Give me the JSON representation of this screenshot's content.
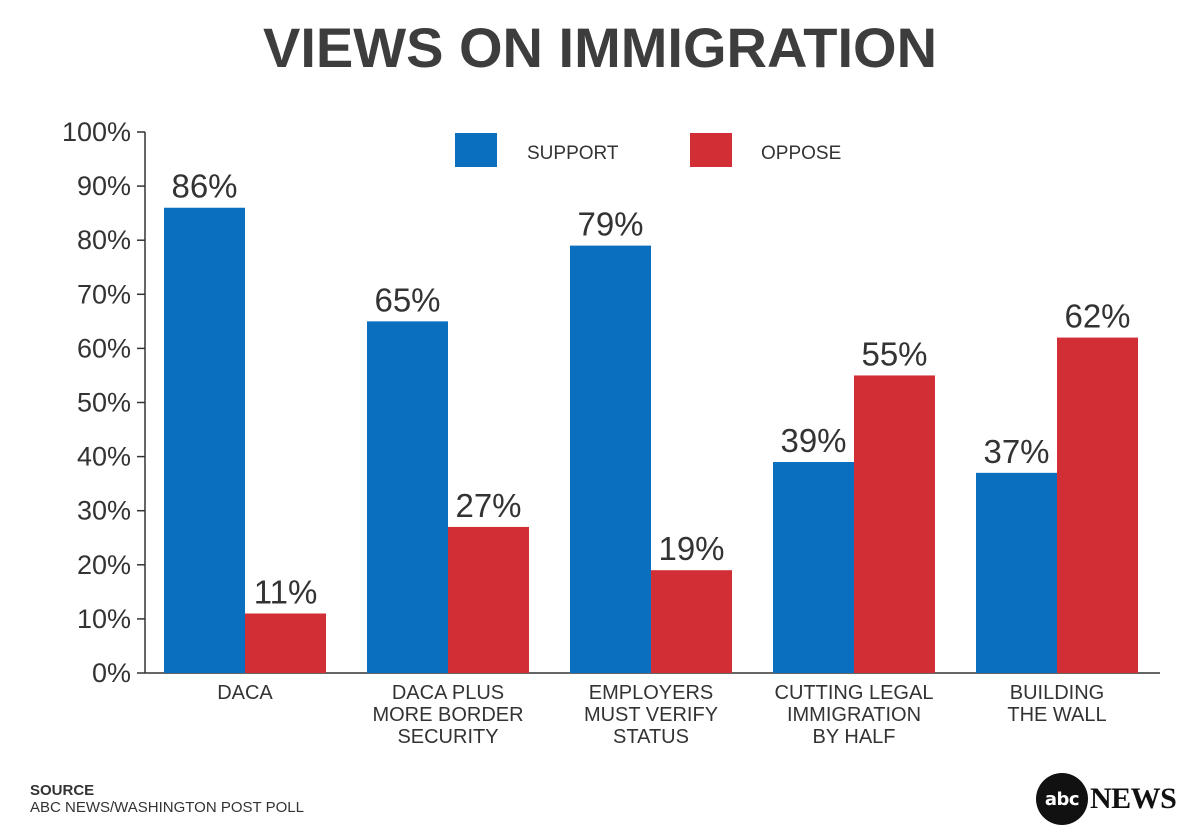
{
  "chart_data": {
    "type": "bar",
    "title": "VIEWS ON IMMIGRATION",
    "xlabel": "",
    "ylabel": "",
    "ylim": [
      0,
      100
    ],
    "y_ticks": [
      "0%",
      "10%",
      "20%",
      "30%",
      "40%",
      "50%",
      "60%",
      "70%",
      "80%",
      "90%",
      "100%"
    ],
    "categories": [
      [
        "DACA"
      ],
      [
        "DACA PLUS",
        "MORE BORDER",
        "SECURITY"
      ],
      [
        "EMPLOYERS",
        "MUST VERIFY",
        "STATUS"
      ],
      [
        "CUTTING LEGAL",
        "IMMIGRATION",
        "BY HALF"
      ],
      [
        "BUILDING",
        "THE WALL"
      ]
    ],
    "series": [
      {
        "name": "SUPPORT",
        "color": "#0a6fbf",
        "values": [
          86,
          65,
          79,
          39,
          37
        ],
        "labels": [
          "86%",
          "65%",
          "79%",
          "39%",
          "37%"
        ]
      },
      {
        "name": "OPPOSE",
        "color": "#d12e35",
        "values": [
          11,
          27,
          19,
          55,
          62
        ],
        "labels": [
          "11%",
          "27%",
          "19%",
          "55%",
          "62%"
        ]
      }
    ],
    "legend_position": "top-center",
    "grid": false
  },
  "source": {
    "heading": "SOURCE",
    "text": "ABC NEWS/WASHINGTON POST POLL"
  },
  "logo": {
    "circle_text": "abc",
    "word": "NEWS"
  }
}
